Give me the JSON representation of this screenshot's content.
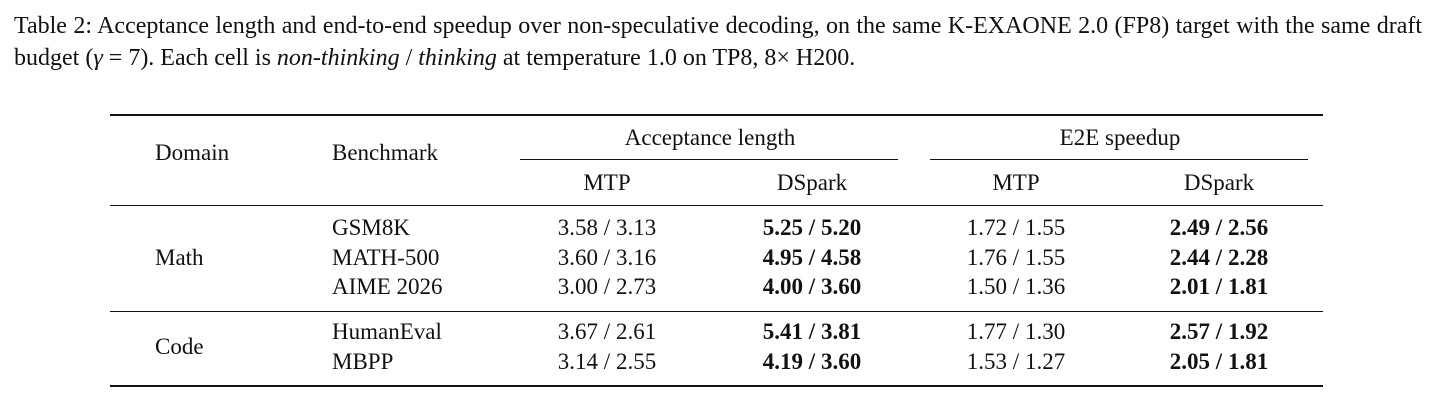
{
  "caption": {
    "parts": [
      "Table 2: Acceptance length and end-to-end speedup over non-speculative decoding, on the same K-EXAONE 2.0 (FP8) target with the same draft budget (",
      "γ",
      " = 7). Each cell is ",
      "non-thinking",
      " / ",
      "thinking",
      " at temperature 1.0 on TP8, 8× H200."
    ]
  },
  "table": {
    "header": {
      "domain": "Domain",
      "benchmark": "Benchmark",
      "groups": [
        "Acceptance length",
        "E2E speedup"
      ],
      "subcolumns": [
        "MTP",
        "DSpark",
        "MTP",
        "DSpark"
      ]
    },
    "sections": [
      {
        "domain": "Math",
        "rows": [
          [
            "GSM8K",
            "3.58 / 3.13",
            "5.25 / 5.20",
            "1.72 / 1.55",
            "2.49 / 2.56"
          ],
          [
            "MATH-500",
            "3.60 / 3.16",
            "4.95 / 4.58",
            "1.76 / 1.55",
            "2.44 / 2.28"
          ],
          [
            "AIME 2026",
            "3.00 / 2.73",
            "4.00 / 3.60",
            "1.50 / 1.36",
            "2.01 / 1.81"
          ]
        ]
      },
      {
        "domain": "Code",
        "rows": [
          [
            "HumanEval",
            "3.67 / 2.61",
            "5.41 / 3.81",
            "1.77 / 1.30",
            "2.57 / 1.92"
          ],
          [
            "MBPP",
            "3.14 / 2.55",
            "4.19 / 3.60",
            "1.53 / 1.27",
            "2.05 / 1.81"
          ]
        ]
      }
    ]
  }
}
